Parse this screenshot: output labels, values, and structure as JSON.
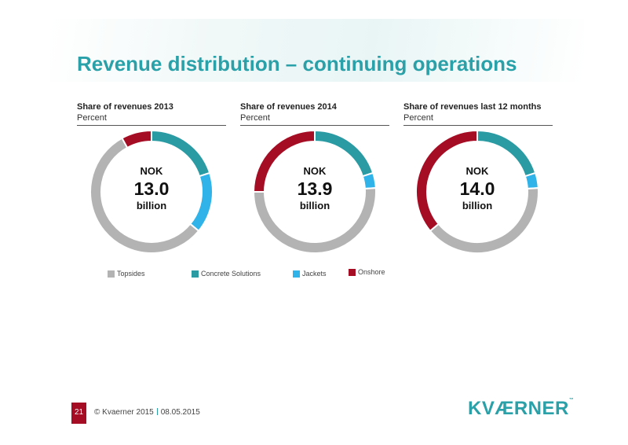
{
  "title": "Revenue distribution – continuing operations",
  "colors": {
    "title": "#2aa0a8",
    "Topsides": "#b3b3b3",
    "Concrete Solutions": "#2a9aa3",
    "Jackets": "#2fb3e8",
    "Onshore": "#a50d24"
  },
  "chart_data": [
    {
      "type": "pie",
      "title": "Share of revenues 2013",
      "subtitle": "Percent",
      "center": {
        "currency": "NOK",
        "value": "13.0",
        "unit": "billion"
      },
      "categories": [
        "Concrete Solutions",
        "Jackets",
        "Topsides",
        "Onshore"
      ],
      "values": [
        20,
        16,
        56,
        8
      ]
    },
    {
      "type": "pie",
      "title": "Share of revenues 2014",
      "subtitle": "Percent",
      "center": {
        "currency": "NOK",
        "value": "13.9",
        "unit": "billion"
      },
      "categories": [
        "Concrete Solutions",
        "Jackets",
        "Topsides",
        "Onshore"
      ],
      "values": [
        20,
        4,
        51,
        25
      ]
    },
    {
      "type": "pie",
      "title": "Share of revenues last 12 months",
      "subtitle": "Percent",
      "center": {
        "currency": "NOK",
        "value": "14.0",
        "unit": "billion"
      },
      "categories": [
        "Concrete Solutions",
        "Jackets",
        "Topsides",
        "Onshore"
      ],
      "values": [
        20,
        4,
        40,
        36
      ]
    }
  ],
  "legend": [
    "Topsides",
    "Concrete Solutions",
    "Jackets",
    "Onshore"
  ],
  "footer": {
    "page": "21",
    "copyright": "© Kvaerner 2015",
    "date": "08.05.2015"
  },
  "logo": {
    "text": "KVÆRNER",
    "mark": "™"
  }
}
